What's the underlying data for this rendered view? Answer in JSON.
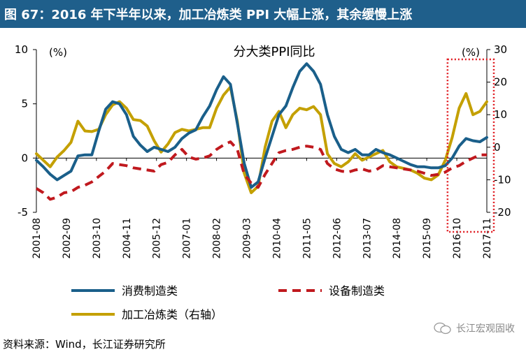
{
  "header": {
    "title": "图 67：2016 年下半年以来，加工冶炼类 PPI 大幅上涨，其余缓慢上涨",
    "bg_color": "#1f5f8b"
  },
  "footer": {
    "source": "资料来源：Wind，长江证券研究所",
    "watermark": "长江宏观固收",
    "watermark_icon": "wechat-icon"
  },
  "chart_data": {
    "type": "line",
    "title": "分大类PPI同比",
    "y_left": {
      "unit": "(%)",
      "ylim": [
        -5,
        10
      ],
      "ticks": [
        -5,
        0,
        5,
        10
      ]
    },
    "y_right": {
      "unit": "(%)",
      "ylim": [
        -20,
        30
      ],
      "ticks": [
        -20,
        -10,
        0,
        10,
        20,
        30
      ]
    },
    "x_tick_labels": [
      "2001-08",
      "2002-09",
      "2003-10",
      "2004-11",
      "2005-12",
      "2007-01",
      "2008-02",
      "2009-03",
      "2010-04",
      "2011-05",
      "2012-06",
      "2013-07",
      "2014-08",
      "2015-09",
      "2016-10",
      "2017-11"
    ],
    "x_range": [
      "2001-08",
      "2017-11"
    ],
    "grid": false,
    "legend_position": "bottom",
    "highlight_box": {
      "from": "2016-06",
      "to": "2017-11",
      "style": "dotted",
      "color": "#e0191f"
    },
    "series": [
      {
        "name": "消费制造类",
        "axis": "left",
        "color": "#1a5f8a",
        "style": "solid",
        "points": [
          [
            "2001-08",
            -0.2
          ],
          [
            "2001-11",
            -0.8
          ],
          [
            "2002-02",
            -1.5
          ],
          [
            "2002-05",
            -2.0
          ],
          [
            "2002-08",
            -1.6
          ],
          [
            "2002-11",
            -1.2
          ],
          [
            "2003-02",
            0.2
          ],
          [
            "2003-05",
            0.3
          ],
          [
            "2003-08",
            0.3
          ],
          [
            "2003-11",
            2.5
          ],
          [
            "2004-02",
            4.5
          ],
          [
            "2004-05",
            5.2
          ],
          [
            "2004-08",
            5.0
          ],
          [
            "2004-11",
            4.0
          ],
          [
            "2005-02",
            2.0
          ],
          [
            "2005-05",
            1.2
          ],
          [
            "2005-08",
            0.6
          ],
          [
            "2005-11",
            1.0
          ],
          [
            "2006-02",
            0.8
          ],
          [
            "2006-05",
            0.6
          ],
          [
            "2006-08",
            1.0
          ],
          [
            "2006-11",
            1.8
          ],
          [
            "2007-02",
            2.3
          ],
          [
            "2007-05",
            2.6
          ],
          [
            "2007-08",
            3.8
          ],
          [
            "2007-11",
            4.8
          ],
          [
            "2008-02",
            6.3
          ],
          [
            "2008-05",
            7.5
          ],
          [
            "2008-08",
            6.8
          ],
          [
            "2008-11",
            3.2
          ],
          [
            "2009-02",
            -0.5
          ],
          [
            "2009-05",
            -2.7
          ],
          [
            "2009-08",
            -2.2
          ],
          [
            "2009-11",
            0.0
          ],
          [
            "2010-02",
            2.0
          ],
          [
            "2010-05",
            4.0
          ],
          [
            "2010-08",
            4.8
          ],
          [
            "2010-11",
            6.5
          ],
          [
            "2011-02",
            8.0
          ],
          [
            "2011-05",
            8.7
          ],
          [
            "2011-08",
            8.0
          ],
          [
            "2011-11",
            6.8
          ],
          [
            "2012-02",
            4.0
          ],
          [
            "2012-05",
            2.0
          ],
          [
            "2012-08",
            0.8
          ],
          [
            "2012-11",
            0.5
          ],
          [
            "2013-02",
            0.8
          ],
          [
            "2013-05",
            0.3
          ],
          [
            "2013-08",
            0.3
          ],
          [
            "2013-11",
            0.8
          ],
          [
            "2014-02",
            0.5
          ],
          [
            "2014-05",
            0.3
          ],
          [
            "2014-08",
            0.0
          ],
          [
            "2014-11",
            -0.3
          ],
          [
            "2015-02",
            -0.6
          ],
          [
            "2015-05",
            -0.8
          ],
          [
            "2015-08",
            -0.8
          ],
          [
            "2015-11",
            -0.9
          ],
          [
            "2016-02",
            -0.9
          ],
          [
            "2016-05",
            -0.7
          ],
          [
            "2016-08",
            0.0
          ],
          [
            "2016-11",
            1.1
          ],
          [
            "2017-02",
            1.8
          ],
          [
            "2017-05",
            1.6
          ],
          [
            "2017-08",
            1.5
          ],
          [
            "2017-11",
            1.9
          ]
        ]
      },
      {
        "name": "设备制造类",
        "axis": "left",
        "color": "#c0191e",
        "style": "dashed",
        "points": [
          [
            "2001-08",
            -2.8
          ],
          [
            "2001-11",
            -3.2
          ],
          [
            "2002-02",
            -3.8
          ],
          [
            "2002-05",
            -3.6
          ],
          [
            "2002-08",
            -3.2
          ],
          [
            "2002-11",
            -3.1
          ],
          [
            "2003-02",
            -2.7
          ],
          [
            "2003-05",
            -2.5
          ],
          [
            "2003-08",
            -2.2
          ],
          [
            "2003-11",
            -1.7
          ],
          [
            "2004-02",
            -1.2
          ],
          [
            "2004-05",
            -0.5
          ],
          [
            "2004-08",
            -0.6
          ],
          [
            "2004-11",
            -0.7
          ],
          [
            "2005-02",
            -0.9
          ],
          [
            "2005-05",
            -1.0
          ],
          [
            "2005-08",
            -1.1
          ],
          [
            "2005-11",
            -1.2
          ],
          [
            "2006-02",
            -0.6
          ],
          [
            "2006-05",
            -0.4
          ],
          [
            "2006-08",
            0.3
          ],
          [
            "2006-11",
            0.8
          ],
          [
            "2007-02",
            0.1
          ],
          [
            "2007-05",
            -0.1
          ],
          [
            "2007-08",
            0.0
          ],
          [
            "2007-11",
            0.2
          ],
          [
            "2008-02",
            0.8
          ],
          [
            "2008-05",
            1.2
          ],
          [
            "2008-08",
            1.5
          ],
          [
            "2008-11",
            0.8
          ],
          [
            "2009-02",
            -1.5
          ],
          [
            "2009-05",
            -2.3
          ],
          [
            "2009-08",
            -2.7
          ],
          [
            "2009-11",
            -1.5
          ],
          [
            "2010-02",
            -0.5
          ],
          [
            "2010-05",
            0.5
          ],
          [
            "2010-08",
            0.7
          ],
          [
            "2010-11",
            0.8
          ],
          [
            "2011-02",
            1.0
          ],
          [
            "2011-05",
            1.1
          ],
          [
            "2011-08",
            1.0
          ],
          [
            "2011-11",
            0.8
          ],
          [
            "2012-02",
            -0.5
          ],
          [
            "2012-05",
            -1.0
          ],
          [
            "2012-08",
            -1.2
          ],
          [
            "2012-11",
            -1.3
          ],
          [
            "2013-02",
            -1.1
          ],
          [
            "2013-05",
            -1.0
          ],
          [
            "2013-08",
            -1.2
          ],
          [
            "2013-11",
            -1.1
          ],
          [
            "2014-02",
            -0.7
          ],
          [
            "2014-05",
            -0.8
          ],
          [
            "2014-08",
            -0.9
          ],
          [
            "2014-11",
            -1.0
          ],
          [
            "2015-02",
            -1.1
          ],
          [
            "2015-05",
            -1.2
          ],
          [
            "2015-08",
            -1.4
          ],
          [
            "2015-11",
            -1.6
          ],
          [
            "2016-02",
            -1.5
          ],
          [
            "2016-05",
            -1.3
          ],
          [
            "2016-08",
            -0.9
          ],
          [
            "2016-11",
            -0.7
          ],
          [
            "2017-02",
            -0.3
          ],
          [
            "2017-05",
            0.0
          ],
          [
            "2017-08",
            0.3
          ],
          [
            "2017-11",
            0.3
          ]
        ]
      },
      {
        "name": "加工冶炼类（右轴）",
        "axis": "right",
        "color": "#c4a000",
        "style": "solid",
        "points": [
          [
            "2001-08",
            -2.0
          ],
          [
            "2001-11",
            -4.0
          ],
          [
            "2002-02",
            -6.0
          ],
          [
            "2002-05",
            -3.0
          ],
          [
            "2002-08",
            -1.0
          ],
          [
            "2002-11",
            1.5
          ],
          [
            "2003-02",
            8.0
          ],
          [
            "2003-05",
            5.0
          ],
          [
            "2003-08",
            4.8
          ],
          [
            "2003-11",
            5.5
          ],
          [
            "2004-02",
            10.0
          ],
          [
            "2004-05",
            13.0
          ],
          [
            "2004-08",
            14.0
          ],
          [
            "2004-11",
            12.0
          ],
          [
            "2005-02",
            8.5
          ],
          [
            "2005-05",
            8.2
          ],
          [
            "2005-08",
            6.5
          ],
          [
            "2005-11",
            2.0
          ],
          [
            "2006-02",
            -1.5
          ],
          [
            "2006-05",
            1.0
          ],
          [
            "2006-08",
            4.5
          ],
          [
            "2006-11",
            5.5
          ],
          [
            "2007-02",
            5.0
          ],
          [
            "2007-05",
            5.5
          ],
          [
            "2007-08",
            6.0
          ],
          [
            "2007-11",
            6.0
          ],
          [
            "2008-02",
            12.0
          ],
          [
            "2008-05",
            16.0
          ],
          [
            "2008-08",
            18.5
          ],
          [
            "2008-11",
            8.0
          ],
          [
            "2009-02",
            -8.0
          ],
          [
            "2009-05",
            -14.0
          ],
          [
            "2009-08",
            -12.0
          ],
          [
            "2009-11",
            0.0
          ],
          [
            "2010-02",
            8.0
          ],
          [
            "2010-05",
            11.0
          ],
          [
            "2010-08",
            6.0
          ],
          [
            "2010-11",
            10.0
          ],
          [
            "2011-02",
            12.0
          ],
          [
            "2011-05",
            11.5
          ],
          [
            "2011-08",
            12.5
          ],
          [
            "2011-11",
            10.0
          ],
          [
            "2012-02",
            -2.0
          ],
          [
            "2012-05",
            -5.0
          ],
          [
            "2012-08",
            -6.0
          ],
          [
            "2012-11",
            -4.5
          ],
          [
            "2013-02",
            -2.0
          ],
          [
            "2013-05",
            -4.0
          ],
          [
            "2013-08",
            -3.0
          ],
          [
            "2013-11",
            -2.0
          ],
          [
            "2014-02",
            -1.0
          ],
          [
            "2014-05",
            -4.5
          ],
          [
            "2014-08",
            -6.0
          ],
          [
            "2014-11",
            -6.5
          ],
          [
            "2015-02",
            -7.0
          ],
          [
            "2015-05",
            -8.0
          ],
          [
            "2015-08",
            -9.5
          ],
          [
            "2015-11",
            -10.0
          ],
          [
            "2016-02",
            -8.5
          ],
          [
            "2016-05",
            -4.0
          ],
          [
            "2016-08",
            3.0
          ],
          [
            "2016-11",
            12.0
          ],
          [
            "2017-02",
            16.5
          ],
          [
            "2017-05",
            10.0
          ],
          [
            "2017-08",
            11.0
          ],
          [
            "2017-11",
            14.0
          ]
        ]
      }
    ]
  }
}
